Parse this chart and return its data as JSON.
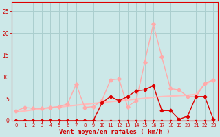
{
  "x": [
    0,
    1,
    2,
    3,
    4,
    5,
    6,
    7,
    8,
    9,
    10,
    11,
    12,
    13,
    14,
    15,
    16,
    17,
    18,
    19,
    20,
    21,
    22,
    23
  ],
  "rafales": [
    2.2,
    3.0,
    2.8,
    2.8,
    3.0,
    3.2,
    3.8,
    8.3,
    3.0,
    3.2,
    4.5,
    9.3,
    9.5,
    3.2,
    4.5,
    13.3,
    22.0,
    14.5,
    7.3,
    7.0,
    5.5,
    5.5,
    8.5,
    9.3
  ],
  "moyen_line": [
    0.0,
    0.0,
    0.0,
    0.0,
    0.0,
    0.0,
    0.0,
    0.0,
    0.0,
    0.0,
    0.0,
    0.0,
    0.0,
    0.0,
    0.0,
    0.0,
    0.0,
    0.0,
    0.0,
    0.0,
    0.0,
    0.0,
    0.0,
    0.0
  ],
  "tendance": [
    2.0,
    2.2,
    2.5,
    2.7,
    2.9,
    3.1,
    3.3,
    3.5,
    3.7,
    3.9,
    4.1,
    4.3,
    4.5,
    4.7,
    4.9,
    5.1,
    5.3,
    5.5,
    5.6,
    5.7,
    5.8,
    6.0,
    8.3,
    9.3
  ],
  "moyen2": [
    0.0,
    0.0,
    0.0,
    0.0,
    0.0,
    0.0,
    0.0,
    0.0,
    0.0,
    0.0,
    4.0,
    5.5,
    4.5,
    5.5,
    6.8,
    7.0,
    8.0,
    2.3,
    2.3,
    0.3,
    1.0,
    5.5,
    5.5,
    0.3
  ],
  "background_color": "#cce8e8",
  "grid_color": "#aacece",
  "color_rafales": "#ffaaaa",
  "color_tendance": "#ffbbbb",
  "color_moyen_dark": "#dd0000",
  "xlabel": "Vent moyen/en rafales ( km/h )",
  "xlabel_color": "#cc0000",
  "ylim": [
    0,
    27
  ],
  "xlim": [
    -0.5,
    23.5
  ],
  "yticks": [
    0,
    5,
    10,
    15,
    20,
    25
  ],
  "xticks": [
    0,
    1,
    2,
    3,
    4,
    5,
    6,
    7,
    8,
    9,
    10,
    11,
    12,
    13,
    14,
    15,
    16,
    17,
    18,
    19,
    20,
    21,
    22,
    23
  ]
}
